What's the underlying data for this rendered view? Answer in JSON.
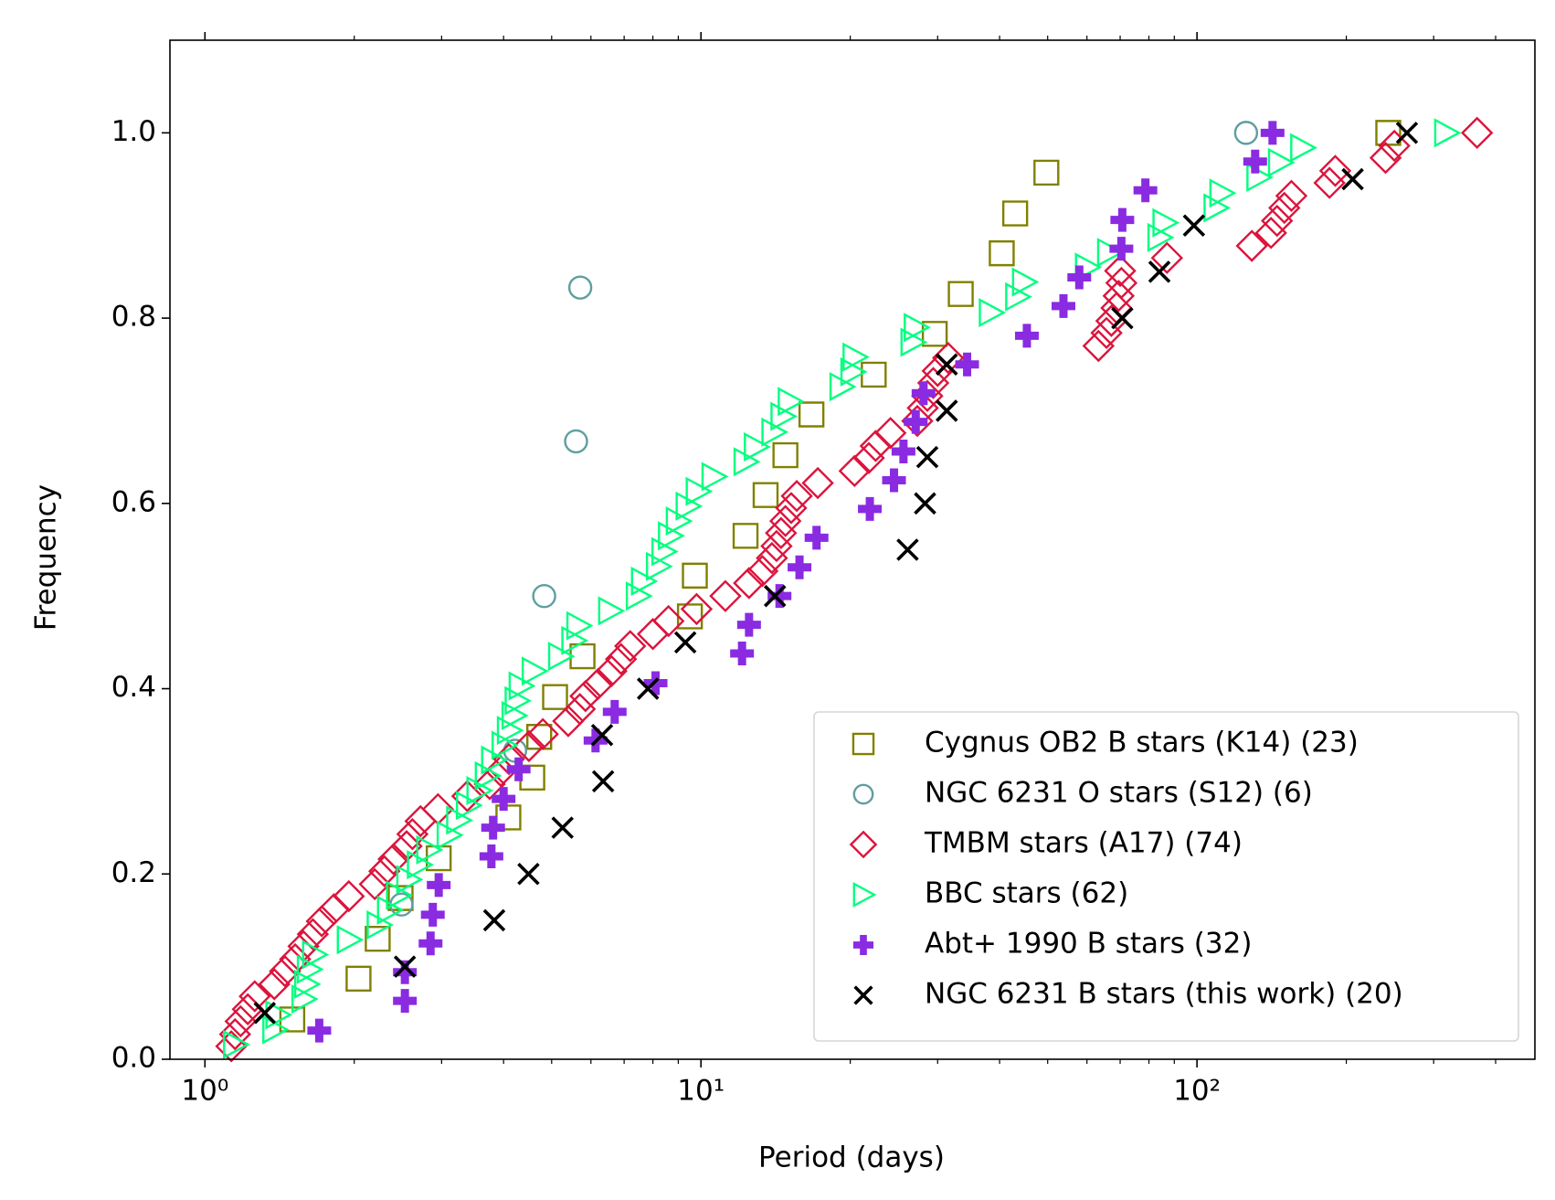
{
  "chart_data": {
    "type": "scatter",
    "xlabel": "Period (days)",
    "ylabel": "Frequency",
    "xscale": "log",
    "xlim": [
      0.85,
      480
    ],
    "ylim": [
      0,
      1.1
    ],
    "xticks": [
      {
        "value": 1,
        "label": "10⁰"
      },
      {
        "value": 10,
        "label": "10¹"
      },
      {
        "value": 100,
        "label": "10²"
      }
    ],
    "xminorticks": [
      2,
      3,
      4,
      5,
      6,
      7,
      8,
      9,
      20,
      30,
      40,
      50,
      60,
      70,
      80,
      90,
      200,
      300,
      400
    ],
    "yticks": [
      {
        "value": 0,
        "label": "0.0"
      },
      {
        "value": 0.2,
        "label": "0.2"
      },
      {
        "value": 0.4,
        "label": "0.4"
      },
      {
        "value": 0.6,
        "label": "0.6"
      },
      {
        "value": 0.8,
        "label": "0.8"
      },
      {
        "value": 1,
        "label": "1.0"
      }
    ],
    "legend": "lower right",
    "series": [
      {
        "name": "Cygnus OB2 B stars (K14) (23)",
        "color": "#808000",
        "marker": "s",
        "x": [
          1.5,
          2.04,
          2.23,
          2.48,
          2.96,
          4.09,
          4.57,
          4.72,
          5.08,
          5.77,
          9.5,
          9.72,
          12.3,
          13.5,
          14.8,
          16.7,
          22.3,
          29.6,
          33.4,
          40.4,
          43.0,
          49.7,
          243
        ],
        "values": [
          0.043,
          0.087,
          0.13,
          0.174,
          0.217,
          0.261,
          0.304,
          0.348,
          0.391,
          0.435,
          0.478,
          0.522,
          0.565,
          0.609,
          0.652,
          0.696,
          0.739,
          0.783,
          0.826,
          0.87,
          0.913,
          0.957,
          1
        ]
      },
      {
        "name": "NGC 6231 O stars (S12) (6)",
        "color": "#5f9ea0",
        "marker": "o",
        "x": [
          2.49,
          4.22,
          4.83,
          5.6,
          5.71,
          125.6
        ],
        "values": [
          0.167,
          0.333,
          0.5,
          0.667,
          0.833,
          1
        ]
      },
      {
        "name": "TMBM stars (A17) (74)",
        "color": "#dc143c",
        "marker": "D",
        "x": [
          1.13,
          1.15,
          1.18,
          1.22,
          1.26,
          1.38,
          1.45,
          1.52,
          1.58,
          1.65,
          1.72,
          1.82,
          1.95,
          2.2,
          2.3,
          2.4,
          2.55,
          2.62,
          2.72,
          2.95,
          3.38,
          3.75,
          3.95,
          4.1,
          4.5,
          4.8,
          5.4,
          5.7,
          5.85,
          6.2,
          6.6,
          6.9,
          7.2,
          8.0,
          8.6,
          9.8,
          11.2,
          12.5,
          13.3,
          13.9,
          14.2,
          14.5,
          14.8,
          15.2,
          15.6,
          17.2,
          20.4,
          21.8,
          22.5,
          24.1,
          27.3,
          28.0,
          28.6,
          29.4,
          30.0,
          31.5,
          63.3,
          65.7,
          67.2,
          68.8,
          69.5,
          70.4,
          70.0,
          87,
          129,
          141,
          145,
          150,
          155,
          185,
          190,
          240,
          250,
          367
        ],
        "values": [
          0.014,
          0.027,
          0.041,
          0.054,
          0.068,
          0.081,
          0.095,
          0.108,
          0.122,
          0.135,
          0.149,
          0.162,
          0.176,
          0.189,
          0.203,
          0.216,
          0.23,
          0.243,
          0.257,
          0.27,
          0.284,
          0.297,
          0.311,
          0.324,
          0.338,
          0.351,
          0.365,
          0.378,
          0.392,
          0.405,
          0.419,
          0.432,
          0.446,
          0.459,
          0.473,
          0.486,
          0.5,
          0.514,
          0.527,
          0.541,
          0.554,
          0.568,
          0.581,
          0.595,
          0.608,
          0.622,
          0.635,
          0.649,
          0.662,
          0.676,
          0.689,
          0.703,
          0.716,
          0.73,
          0.743,
          0.757,
          0.77,
          0.784,
          0.797,
          0.811,
          0.824,
          0.838,
          0.851,
          0.865,
          0.878,
          0.892,
          0.905,
          0.919,
          0.932,
          0.946,
          0.959,
          0.973,
          0.986,
          1
        ]
      },
      {
        "name": "BBC stars (62)",
        "color": "#00ff7f",
        "marker": ">",
        "x": [
          1.15,
          1.38,
          1.4,
          1.58,
          1.6,
          1.62,
          1.66,
          1.95,
          2.24,
          2.35,
          2.45,
          2.57,
          2.7,
          2.82,
          3.1,
          3.24,
          3.39,
          3.56,
          3.7,
          3.81,
          4.0,
          4.1,
          4.19,
          4.25,
          4.33,
          4.6,
          5.2,
          5.53,
          5.66,
          6.56,
          7.46,
          7.64,
          8.19,
          8.4,
          8.66,
          8.98,
          9.4,
          9.85,
          10.6,
          12.3,
          12.9,
          14.0,
          14.6,
          15.1,
          19.2,
          20.2,
          20.4,
          26.7,
          27.1,
          38.4,
          43.4,
          44.8,
          60,
          66.5,
          84,
          86,
          109,
          112,
          133,
          147,
          163,
          318
        ],
        "values": [
          0.016,
          0.032,
          0.048,
          0.065,
          0.081,
          0.097,
          0.113,
          0.129,
          0.145,
          0.161,
          0.177,
          0.194,
          0.21,
          0.226,
          0.242,
          0.258,
          0.274,
          0.29,
          0.306,
          0.323,
          0.339,
          0.355,
          0.371,
          0.387,
          0.403,
          0.419,
          0.435,
          0.452,
          0.468,
          0.484,
          0.5,
          0.516,
          0.532,
          0.548,
          0.565,
          0.581,
          0.597,
          0.613,
          0.629,
          0.645,
          0.661,
          0.677,
          0.694,
          0.71,
          0.726,
          0.742,
          0.758,
          0.774,
          0.79,
          0.806,
          0.823,
          0.839,
          0.855,
          0.871,
          0.887,
          0.903,
          0.919,
          0.935,
          0.952,
          0.968,
          0.984,
          1
        ]
      },
      {
        "name": "Abt+ 1990 B stars (32)",
        "color": "#8a2be2",
        "marker": "P",
        "x": [
          1.7,
          2.53,
          2.53,
          2.85,
          2.88,
          2.96,
          3.78,
          3.81,
          4.0,
          4.29,
          6.13,
          6.7,
          8.1,
          12.1,
          12.5,
          14.4,
          15.8,
          17.1,
          21.9,
          24.5,
          25.6,
          27.1,
          28.1,
          34.4,
          45.4,
          53.8,
          57.9,
          70.4,
          70.7,
          78.7,
          131,
          142
        ],
        "values": [
          0.031,
          0.063,
          0.094,
          0.125,
          0.156,
          0.188,
          0.219,
          0.25,
          0.281,
          0.313,
          0.344,
          0.375,
          0.406,
          0.438,
          0.469,
          0.5,
          0.531,
          0.563,
          0.594,
          0.625,
          0.656,
          0.688,
          0.719,
          0.75,
          0.781,
          0.813,
          0.844,
          0.875,
          0.906,
          0.938,
          0.969,
          1
        ]
      },
      {
        "name": "NGC 6231 B stars (this work) (20)",
        "color": "#000000",
        "marker": "x",
        "x": [
          1.32,
          2.53,
          3.83,
          4.49,
          5.26,
          6.35,
          6.32,
          7.82,
          9.3,
          14.1,
          26.1,
          28.3,
          28.6,
          31.3,
          31.3,
          70.7,
          84,
          98.6,
          206,
          265
        ],
        "values": [
          0.05,
          0.1,
          0.15,
          0.2,
          0.25,
          0.3,
          0.35,
          0.4,
          0.45,
          0.5,
          0.55,
          0.6,
          0.65,
          0.7,
          0.75,
          0.8,
          0.85,
          0.9,
          0.95,
          1
        ]
      }
    ]
  }
}
